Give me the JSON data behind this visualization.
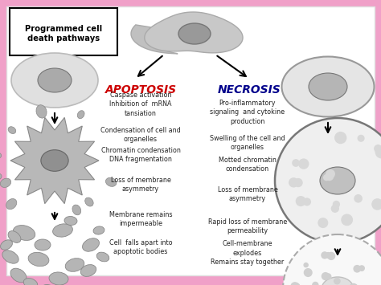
{
  "background_color": "#f0a0c8",
  "inner_bg": "#ffffff",
  "title_box": "Programmed cell\ndeath pathways",
  "apoptosis_label": "APOPTOSIS",
  "necrosis_label": "NECROSIS",
  "apoptosis_color": "#cc0000",
  "necrosis_color": "#00008b",
  "apoptosis_texts": [
    "Caspase activation\nInhibition of  mRNA\ntansiation",
    "Condensation of cell and\norganelles",
    "Chromatin condensation\nDNA fragmentation",
    "Loss of membrane\nasymmetry",
    "Membrane remains\nimpermeable",
    "Cell  falls apart into\napoptotic bodies"
  ],
  "necrosis_texts": [
    "Pro-inflammatory\nsignaling  and cytokine\nproduction",
    "Swelling of the cell and\norganelles",
    "Motted chromatin\ncondensation",
    "Loss of membrane\nasymmetry",
    "Rapid loss of membrane\npermeability",
    "Cell-membrane\nexplodes\nRemains stay together"
  ]
}
